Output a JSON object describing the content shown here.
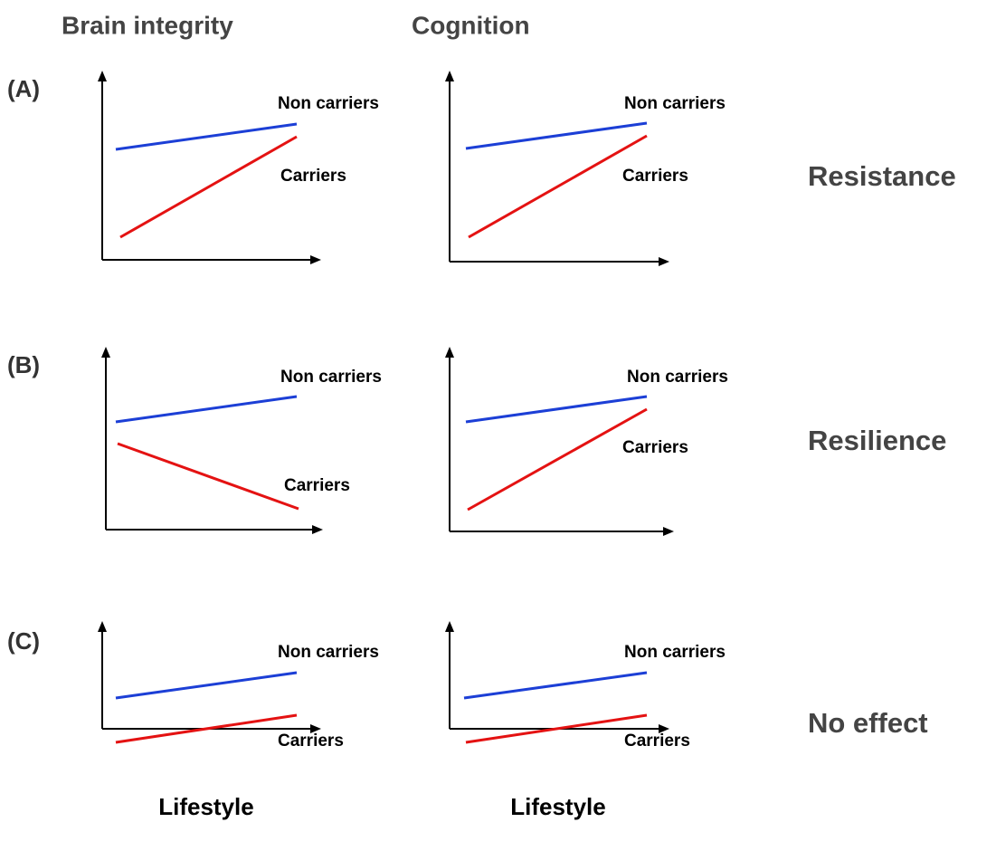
{
  "columns": [
    {
      "title": "Brain integrity",
      "x_label": "Lifestyle"
    },
    {
      "title": "Cognition",
      "x_label": "Lifestyle"
    }
  ],
  "rows": [
    {
      "label": "(A)",
      "outcome": "Resistance",
      "panels": [
        {
          "upper_label": "Non carriers",
          "lower_label": "Carriers"
        },
        {
          "upper_label": "Non carriers",
          "lower_label": "Carriers"
        }
      ]
    },
    {
      "label": "(B)",
      "outcome": "Resilience",
      "panels": [
        {
          "upper_label": "Non carriers",
          "lower_label": "Carriers"
        },
        {
          "upper_label": "Non carriers",
          "lower_label": "Carriers"
        }
      ]
    },
    {
      "label": "(C)",
      "outcome": "No effect",
      "panels": [
        {
          "upper_label": "Non carriers",
          "lower_label": "Carriers"
        },
        {
          "upper_label": "Non carriers",
          "lower_label": "Carriers"
        }
      ]
    }
  ]
}
